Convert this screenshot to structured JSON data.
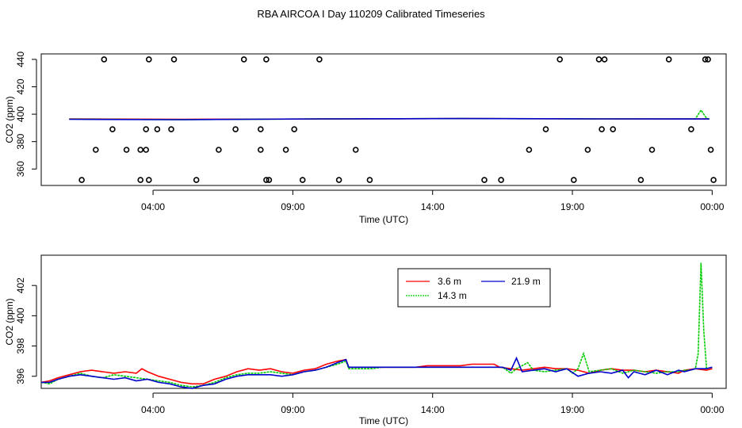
{
  "page_title": "RBA AIRCOA I  Day 110209  Calibrated Timeseries",
  "chart_data": [
    {
      "type": "scatter",
      "xlabel": "Time (UTC)",
      "ylabel": "CO2 (ppm)",
      "x_ticks": [
        "04:00",
        "09:00",
        "14:00",
        "19:00",
        "00:00"
      ],
      "x_tick_hours": [
        4,
        9,
        14,
        19,
        24
      ],
      "xlim_hours": [
        0,
        24.5
      ],
      "y_ticks": [
        360,
        380,
        400,
        420,
        440
      ],
      "ylim": [
        348,
        444
      ],
      "grid": false,
      "series": [
        {
          "name": "3.6 m",
          "color": "#ff0000",
          "x": [
            1.0,
            5.0,
            10.0,
            15.0,
            20.0,
            23.9
          ],
          "y": [
            396.5,
            396.3,
            396.5,
            396.8,
            396.6,
            396.5
          ]
        },
        {
          "name": "14.3 m",
          "color": "#00cc00",
          "x": [
            1.0,
            5.0,
            10.0,
            15.0,
            20.0,
            23.4,
            23.6,
            23.8,
            23.9
          ],
          "y": [
            396.4,
            396.0,
            396.6,
            396.8,
            396.6,
            396.6,
            403.0,
            397.0,
            396.6
          ]
        },
        {
          "name": "21.9 m",
          "color": "#0000cc",
          "x": [
            1.0,
            5.0,
            10.0,
            15.0,
            20.0,
            23.9
          ],
          "y": [
            396.3,
            396.0,
            396.6,
            396.8,
            396.6,
            396.5
          ]
        }
      ],
      "calibration_points": {
        "x": [
          1.45,
          1.95,
          2.55,
          3.55,
          3.55,
          4.15,
          2.25,
          3.05,
          3.75,
          3.75,
          3.85,
          3.85,
          4.65,
          4.75,
          5.55,
          6.35,
          6.95,
          7.25,
          7.85,
          7.85,
          8.05,
          8.05,
          8.15,
          8.75,
          9.05,
          9.35,
          9.95,
          10.65,
          11.25,
          11.75,
          15.85,
          16.45,
          17.45,
          18.05,
          18.55,
          19.05,
          19.55,
          19.95,
          20.05,
          20.15,
          20.45,
          21.45,
          21.85,
          22.45,
          23.25,
          23.75,
          23.85,
          23.95,
          24.05
        ],
        "y": [
          352,
          374,
          389,
          374,
          352,
          389,
          440,
          374,
          374,
          389,
          440,
          352,
          389,
          440,
          352,
          374,
          389,
          440,
          389,
          374,
          440,
          352,
          352,
          374,
          389,
          352,
          440,
          352,
          374,
          352,
          352,
          352,
          374,
          389,
          440,
          352,
          374,
          440,
          389,
          440,
          389,
          352,
          374,
          440,
          389,
          440,
          440,
          374,
          352
        ]
      }
    },
    {
      "type": "line",
      "xlabel": "Time (UTC)",
      "ylabel": "CO2 (ppm)",
      "x_ticks": [
        "04:00",
        "09:00",
        "14:00",
        "19:00",
        "00:00"
      ],
      "x_tick_hours": [
        4,
        9,
        14,
        19,
        24
      ],
      "xlim_hours": [
        0,
        24.5
      ],
      "y_ticks": [
        396,
        398,
        400,
        402
      ],
      "ylim": [
        395.2,
        404.0
      ],
      "grid": false,
      "legend_placement": "top-center",
      "series": [
        {
          "name": "3.6 m",
          "color": "#ff0000",
          "x": [
            0.0,
            0.3,
            0.6,
            1.0,
            1.4,
            1.8,
            2.2,
            2.6,
            3.0,
            3.4,
            3.6,
            3.8,
            4.2,
            4.6,
            5.0,
            5.4,
            5.8,
            6.2,
            6.6,
            7.0,
            7.4,
            7.8,
            8.2,
            8.6,
            9.0,
            9.4,
            9.8,
            10.2,
            10.6,
            10.9,
            11.0,
            11.4,
            11.8,
            12.2,
            12.6,
            13.0,
            13.4,
            13.8,
            14.2,
            14.6,
            15.0,
            15.4,
            15.8,
            16.2,
            16.4,
            16.8,
            17.2,
            17.6,
            18.0,
            18.4,
            18.8,
            19.2,
            19.6,
            20.0,
            20.4,
            20.8,
            21.2,
            21.6,
            22.0,
            22.4,
            22.8,
            23.0,
            23.4,
            23.8,
            24.0
          ],
          "y": [
            395.6,
            395.7,
            395.9,
            396.1,
            396.3,
            396.4,
            396.3,
            396.2,
            396.3,
            396.2,
            396.5,
            396.3,
            396.0,
            395.8,
            395.6,
            395.5,
            395.5,
            395.8,
            396.0,
            396.3,
            396.5,
            396.4,
            396.5,
            396.3,
            396.2,
            396.4,
            396.5,
            396.8,
            397.0,
            397.1,
            396.6,
            396.6,
            396.6,
            396.6,
            396.6,
            396.6,
            396.6,
            396.7,
            396.7,
            396.7,
            396.7,
            396.8,
            396.8,
            396.8,
            396.6,
            396.5,
            396.4,
            396.5,
            396.6,
            396.5,
            396.5,
            396.4,
            396.2,
            396.4,
            396.5,
            396.4,
            396.4,
            396.3,
            396.4,
            396.3,
            396.2,
            396.4,
            396.5,
            396.4,
            396.5
          ]
        },
        {
          "name": "14.3 m",
          "color": "#00cc00",
          "x": [
            0.0,
            0.3,
            0.6,
            1.0,
            1.4,
            1.8,
            2.2,
            2.6,
            3.0,
            3.4,
            3.8,
            4.2,
            4.6,
            5.0,
            5.4,
            5.8,
            6.2,
            6.6,
            7.0,
            7.4,
            7.8,
            8.2,
            8.6,
            9.0,
            9.4,
            9.8,
            10.2,
            10.6,
            10.9,
            11.0,
            11.4,
            11.8,
            12.2,
            12.6,
            13.0,
            13.4,
            13.8,
            14.2,
            14.6,
            15.0,
            15.4,
            15.8,
            16.2,
            16.5,
            16.8,
            17.0,
            17.2,
            17.4,
            17.6,
            18.0,
            18.4,
            18.8,
            19.0,
            19.2,
            19.4,
            19.6,
            20.0,
            20.4,
            20.8,
            21.2,
            21.6,
            22.0,
            22.4,
            22.8,
            23.0,
            23.2,
            23.4,
            23.5,
            23.6,
            23.7,
            23.8,
            24.0
          ],
          "y": [
            395.6,
            395.5,
            395.8,
            396.0,
            396.2,
            396.0,
            395.9,
            396.1,
            396.0,
            395.9,
            395.8,
            395.7,
            395.6,
            395.4,
            395.3,
            395.4,
            395.6,
            395.9,
            396.1,
            396.2,
            396.2,
            396.3,
            396.2,
            396.1,
            396.3,
            396.4,
            396.6,
            396.8,
            397.0,
            396.5,
            396.5,
            396.5,
            396.6,
            396.6,
            396.6,
            396.6,
            396.6,
            396.6,
            396.6,
            396.6,
            396.6,
            396.6,
            396.6,
            396.6,
            396.2,
            396.5,
            396.7,
            396.9,
            396.4,
            396.3,
            396.4,
            396.5,
            396.2,
            396.5,
            397.5,
            396.3,
            396.4,
            396.5,
            396.2,
            396.4,
            396.3,
            396.2,
            396.3,
            396.3,
            396.4,
            396.4,
            396.5,
            397.5,
            403.5,
            399.0,
            396.5,
            396.6
          ]
        },
        {
          "name": "21.9 m",
          "color": "#0000cc",
          "x": [
            0.0,
            0.3,
            0.6,
            1.0,
            1.4,
            1.8,
            2.2,
            2.6,
            3.0,
            3.4,
            3.8,
            4.2,
            4.6,
            5.0,
            5.4,
            5.8,
            6.2,
            6.6,
            7.0,
            7.4,
            7.8,
            8.2,
            8.6,
            9.0,
            9.4,
            9.8,
            10.2,
            10.6,
            10.9,
            11.0,
            11.4,
            11.8,
            12.2,
            12.6,
            13.0,
            13.4,
            13.8,
            14.2,
            14.6,
            15.0,
            15.4,
            15.8,
            16.2,
            16.5,
            16.8,
            17.0,
            17.2,
            17.6,
            18.0,
            18.4,
            18.8,
            19.2,
            19.6,
            20.0,
            20.4,
            20.8,
            21.0,
            21.2,
            21.6,
            22.0,
            22.4,
            22.8,
            23.0,
            23.4,
            23.8,
            24.0
          ],
          "y": [
            395.6,
            395.6,
            395.8,
            396.0,
            396.1,
            396.0,
            395.9,
            395.8,
            395.9,
            395.7,
            395.8,
            395.6,
            395.5,
            395.3,
            395.2,
            395.4,
            395.5,
            395.8,
            396.0,
            396.1,
            396.1,
            396.1,
            396.0,
            396.1,
            396.3,
            396.4,
            396.6,
            396.9,
            397.1,
            396.6,
            396.6,
            396.6,
            396.6,
            396.6,
            396.6,
            396.6,
            396.6,
            396.6,
            396.6,
            396.6,
            396.6,
            396.6,
            396.6,
            396.6,
            396.4,
            397.2,
            396.3,
            396.4,
            396.5,
            396.3,
            396.5,
            396.0,
            396.2,
            396.3,
            396.2,
            396.4,
            395.9,
            396.3,
            396.1,
            396.4,
            396.1,
            396.4,
            396.3,
            396.5,
            396.5,
            396.6
          ]
        }
      ]
    }
  ]
}
